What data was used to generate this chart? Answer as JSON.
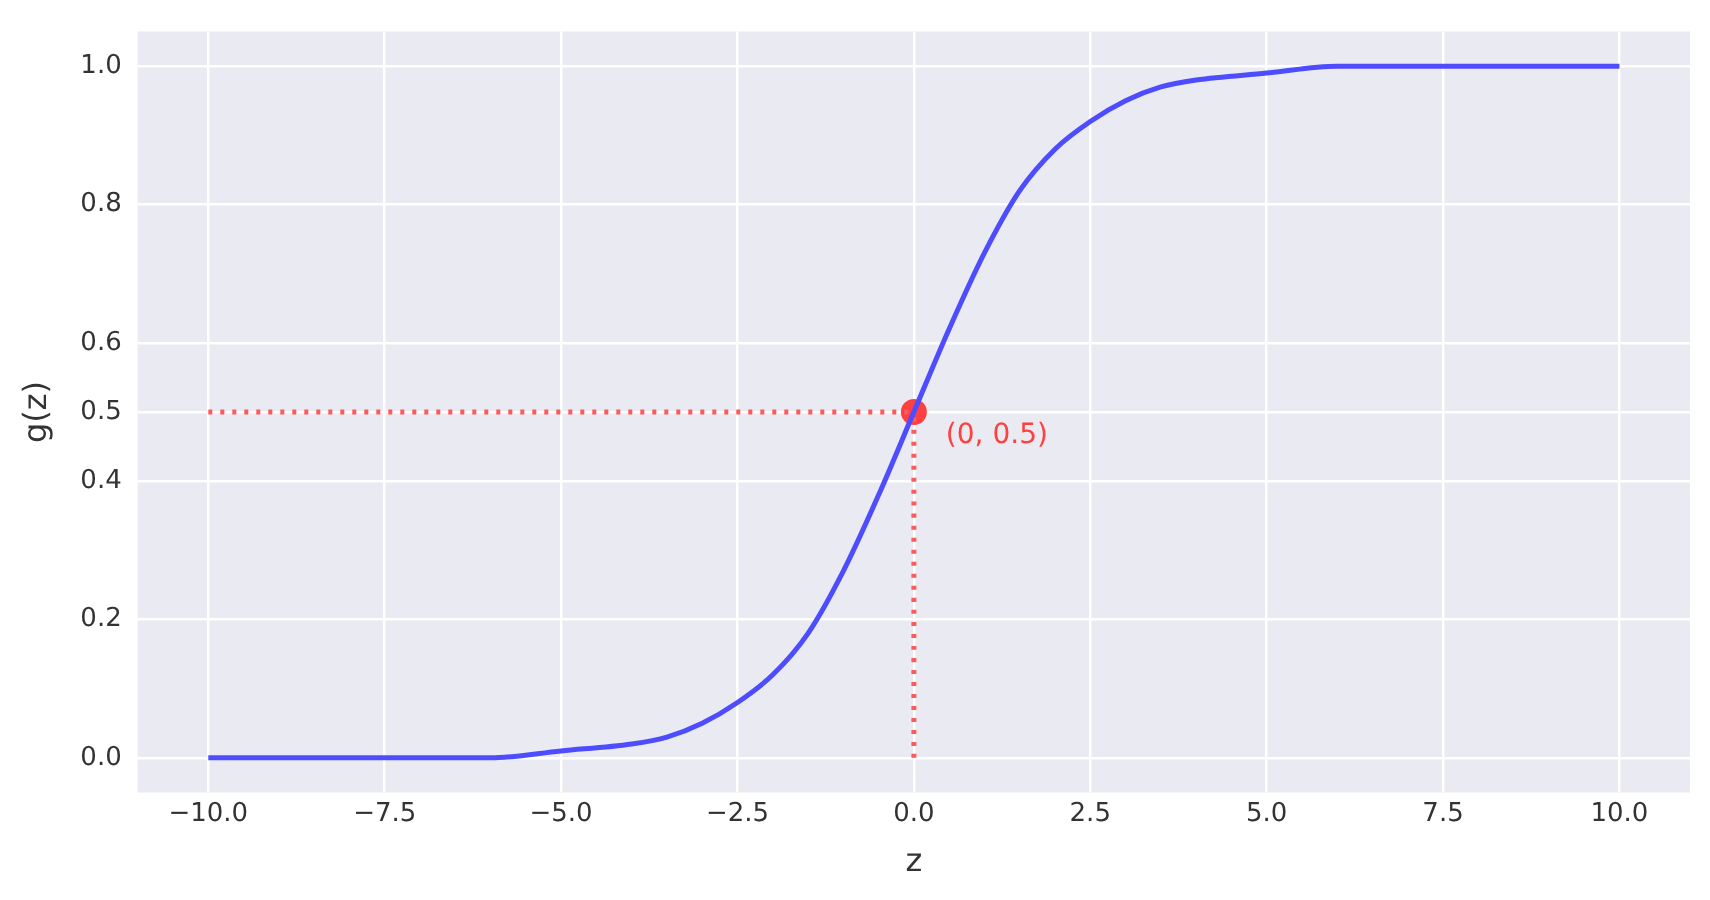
{
  "chart_data": {
    "type": "line",
    "xlabel": "z",
    "ylabel": "g(z)",
    "xlim": [
      -11,
      11
    ],
    "ylim": [
      -0.05,
      1.05
    ],
    "xticks": [
      {
        "value": -10,
        "label": "−10.0"
      },
      {
        "value": -7.5,
        "label": "−7.5"
      },
      {
        "value": -5,
        "label": "−5.0"
      },
      {
        "value": -2.5,
        "label": "−2.5"
      },
      {
        "value": 0,
        "label": "0.0"
      },
      {
        "value": 2.5,
        "label": "2.5"
      },
      {
        "value": 5,
        "label": "5.0"
      },
      {
        "value": 7.5,
        "label": "7.5"
      },
      {
        "value": 10,
        "label": "10.0"
      }
    ],
    "yticks": [
      {
        "value": 0,
        "label": "0.0"
      },
      0.2,
      0.4,
      0.5,
      0.6,
      0.8,
      {
        "value": 1,
        "label": "1.0"
      }
    ],
    "grid": true,
    "legend": false,
    "series": [
      {
        "color": "#4d4dff",
        "line_style": "solid",
        "marker": "none",
        "x": [
          -10,
          -8,
          -7,
          -6,
          -5,
          -4,
          -3.5,
          -3,
          -2.5,
          -2,
          -1.5,
          -1,
          -0.5,
          0,
          0.5,
          1,
          1.5,
          2,
          2.5,
          3,
          3.5,
          4,
          5,
          6,
          7,
          8,
          10
        ],
        "values": [
          0.0,
          0.0,
          0.0,
          0.0,
          0.01,
          0.02,
          0.03,
          0.05,
          0.08,
          0.12,
          0.18,
          0.27,
          0.38,
          0.5,
          0.62,
          0.73,
          0.82,
          0.88,
          0.92,
          0.95,
          0.97,
          0.98,
          0.99,
          1.0,
          1.0,
          1.0,
          1.0
        ]
      },
      {
        "type": "line",
        "color": "#ff5a5a",
        "line_style": "dotted",
        "marker": "none",
        "x": [
          -10,
          0
        ],
        "values": [
          0.5,
          0.5
        ]
      },
      {
        "type": "line",
        "color": "#ff5a5a",
        "line_style": "dotted",
        "marker": "none",
        "x": [
          0,
          0
        ],
        "values": [
          0,
          0.5
        ]
      },
      {
        "type": "scatter",
        "color": "#ff4040",
        "marker": "circle",
        "x": [
          0
        ],
        "values": [
          0.5
        ]
      }
    ],
    "annotations": [
      {
        "text": "(0, 0.5)",
        "x": 0,
        "y": 0.5
      }
    ]
  }
}
